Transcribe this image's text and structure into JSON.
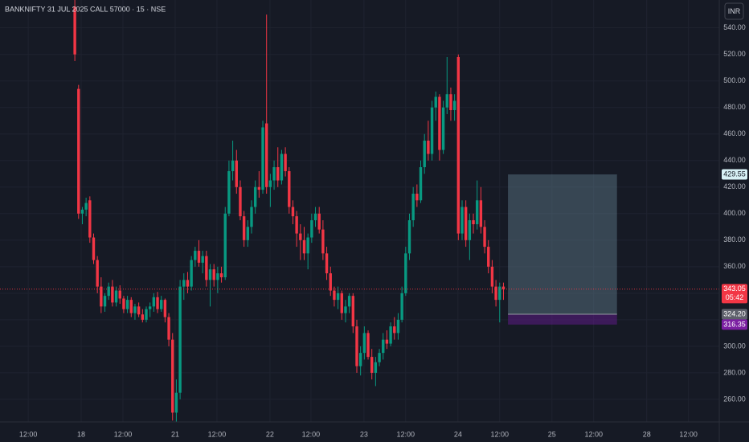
{
  "chart_data": {
    "type": "candlestick",
    "title": "BANKNIFTY 31 JUL 2025 CALL 57000 · 15 · NSE",
    "currency": "INR",
    "up_color": "#089981",
    "down_color": "#f23645",
    "xlim": [
      -19.9,
      171.4
    ],
    "ylim": [
      243,
      561
    ],
    "grid": true,
    "xticks": [
      {
        "value": -12.4,
        "label": "12:00"
      },
      {
        "value": 1.7,
        "label": "18"
      },
      {
        "value": 12.8,
        "label": "12:00"
      },
      {
        "value": 26.7,
        "label": "21"
      },
      {
        "value": 37.8,
        "label": "12:00"
      },
      {
        "value": 51.9,
        "label": "22"
      },
      {
        "value": 62.8,
        "label": "12:00"
      },
      {
        "value": 76.9,
        "label": "23"
      },
      {
        "value": 88.0,
        "label": "12:00"
      },
      {
        "value": 101.9,
        "label": "24"
      },
      {
        "value": 113.0,
        "label": "12:00"
      },
      {
        "value": 126.9,
        "label": "25"
      },
      {
        "value": 138.0,
        "label": "12:00"
      },
      {
        "value": 152.1,
        "label": "28"
      },
      {
        "value": 163.2,
        "label": "12:00"
      }
    ],
    "yticks": [
      {
        "value": 260,
        "label": "260.00"
      },
      {
        "value": 280,
        "label": "280.00"
      },
      {
        "value": 300,
        "label": "300.00"
      },
      {
        "value": 320,
        "label": "320.00"
      },
      {
        "value": 340,
        "label": "340.00"
      },
      {
        "value": 360,
        "label": "360.00"
      },
      {
        "value": 380,
        "label": "380.00"
      },
      {
        "value": 400,
        "label": "400.00"
      },
      {
        "value": 420,
        "label": "420.00"
      },
      {
        "value": 440,
        "label": "440.00"
      },
      {
        "value": 460,
        "label": "460.00"
      },
      {
        "value": 480,
        "label": "480.00"
      },
      {
        "value": 500,
        "label": "500.00"
      },
      {
        "value": 520,
        "label": "520.00"
      },
      {
        "value": 540,
        "label": "540.00"
      }
    ],
    "ohlc": [
      [
        556,
        561,
        515,
        520
      ],
      [
        494,
        497,
        396,
        400
      ],
      [
        400,
        405,
        392,
        403
      ],
      [
        403,
        412,
        398,
        408
      ],
      [
        410,
        413,
        378,
        382
      ],
      [
        382,
        385,
        362,
        365
      ],
      [
        365,
        368,
        340,
        345
      ],
      [
        345,
        352,
        325,
        330
      ],
      [
        330,
        340,
        326,
        338
      ],
      [
        338,
        348,
        335,
        345
      ],
      [
        345,
        350,
        330,
        333
      ],
      [
        333,
        345,
        330,
        342
      ],
      [
        342,
        346,
        332,
        336
      ],
      [
        336,
        338,
        325,
        328
      ],
      [
        328,
        338,
        325,
        335
      ],
      [
        335,
        337,
        322,
        325
      ],
      [
        325,
        332,
        320,
        330
      ],
      [
        330,
        333,
        322,
        324
      ],
      [
        324,
        328,
        318,
        320
      ],
      [
        320,
        330,
        318,
        328
      ],
      [
        328,
        333,
        322,
        330
      ],
      [
        330,
        340,
        326,
        337
      ],
      [
        337,
        341,
        325,
        328
      ],
      [
        328,
        338,
        326,
        335
      ],
      [
        335,
        336,
        318,
        322
      ],
      [
        322,
        325,
        300,
        305
      ],
      [
        305,
        310,
        244,
        250
      ],
      [
        250,
        275,
        243,
        265
      ],
      [
        265,
        350,
        260,
        345
      ],
      [
        345,
        355,
        335,
        350
      ],
      [
        350,
        356,
        340,
        345
      ],
      [
        345,
        368,
        342,
        365
      ],
      [
        365,
        375,
        360,
        372
      ],
      [
        372,
        380,
        360,
        363
      ],
      [
        363,
        372,
        355,
        368
      ],
      [
        368,
        372,
        345,
        350
      ],
      [
        350,
        362,
        330,
        358
      ],
      [
        358,
        362,
        345,
        350
      ],
      [
        350,
        360,
        340,
        355
      ],
      [
        355,
        360,
        348,
        352
      ],
      [
        352,
        405,
        350,
        400
      ],
      [
        400,
        440,
        398,
        432
      ],
      [
        432,
        455,
        425,
        440
      ],
      [
        440,
        448,
        415,
        420
      ],
      [
        420,
        425,
        395,
        398
      ],
      [
        398,
        402,
        375,
        380
      ],
      [
        380,
        395,
        375,
        390
      ],
      [
        390,
        410,
        385,
        405
      ],
      [
        405,
        425,
        400,
        420
      ],
      [
        420,
        432,
        412,
        418
      ],
      [
        418,
        470,
        415,
        465
      ],
      [
        468,
        550,
        415,
        420
      ],
      [
        420,
        430,
        405,
        425
      ],
      [
        425,
        440,
        418,
        435
      ],
      [
        435,
        450,
        420,
        425
      ],
      [
        425,
        448,
        422,
        445
      ],
      [
        445,
        450,
        428,
        432
      ],
      [
        432,
        435,
        400,
        405
      ],
      [
        405,
        410,
        392,
        398
      ],
      [
        398,
        402,
        375,
        385
      ],
      [
        385,
        392,
        365,
        380
      ],
      [
        380,
        390,
        365,
        370
      ],
      [
        370,
        385,
        358,
        382
      ],
      [
        382,
        400,
        378,
        395
      ],
      [
        395,
        405,
        390,
        400
      ],
      [
        400,
        405,
        385,
        388
      ],
      [
        388,
        395,
        365,
        370
      ],
      [
        370,
        375,
        350,
        355
      ],
      [
        355,
        360,
        338,
        342
      ],
      [
        342,
        345,
        330,
        335
      ],
      [
        335,
        345,
        328,
        340
      ],
      [
        340,
        342,
        320,
        325
      ],
      [
        325,
        335,
        318,
        330
      ],
      [
        330,
        340,
        325,
        338
      ],
      [
        338,
        340,
        310,
        315
      ],
      [
        315,
        320,
        280,
        285
      ],
      [
        285,
        300,
        278,
        295
      ],
      [
        295,
        315,
        290,
        310
      ],
      [
        310,
        312,
        290,
        292
      ],
      [
        292,
        298,
        275,
        280
      ],
      [
        280,
        292,
        270,
        288
      ],
      [
        288,
        298,
        285,
        295
      ],
      [
        295,
        310,
        290,
        305
      ],
      [
        305,
        312,
        298,
        302
      ],
      [
        302,
        318,
        300,
        315
      ],
      [
        315,
        322,
        305,
        310
      ],
      [
        310,
        325,
        305,
        320
      ],
      [
        320,
        345,
        318,
        340
      ],
      [
        340,
        375,
        338,
        370
      ],
      [
        370,
        400,
        365,
        395
      ],
      [
        395,
        420,
        390,
        415
      ],
      [
        415,
        422,
        405,
        410
      ],
      [
        410,
        440,
        408,
        435
      ],
      [
        435,
        460,
        430,
        455
      ],
      [
        455,
        470,
        440,
        445
      ],
      [
        445,
        485,
        440,
        480
      ],
      [
        480,
        492,
        470,
        488
      ],
      [
        488,
        490,
        440,
        448
      ],
      [
        448,
        485,
        445,
        480
      ],
      [
        480,
        518,
        475,
        490
      ],
      [
        490,
        495,
        470,
        478
      ],
      [
        478,
        490,
        470,
        485
      ],
      [
        518,
        520,
        380,
        385
      ],
      [
        385,
        410,
        380,
        405
      ],
      [
        405,
        410,
        375,
        380
      ],
      [
        380,
        400,
        365,
        395
      ],
      [
        395,
        400,
        385,
        392
      ],
      [
        392,
        425,
        388,
        410
      ],
      [
        410,
        420,
        385,
        390
      ],
      [
        390,
        395,
        370,
        375
      ],
      [
        375,
        380,
        355,
        360
      ],
      [
        360,
        365,
        340,
        345
      ],
      [
        345,
        350,
        330,
        335
      ],
      [
        335,
        348,
        318,
        345
      ],
      [
        345,
        348,
        335,
        343.05
      ]
    ],
    "last_price": {
      "value": 343.05,
      "label": "343.05"
    },
    "countdown": "05:42",
    "position": {
      "target": {
        "value": 429.55,
        "label": "429.55"
      },
      "entry": {
        "value": 324.2,
        "label": "324.20"
      },
      "stop": {
        "value": 316.35,
        "label": "316.35"
      }
    }
  }
}
